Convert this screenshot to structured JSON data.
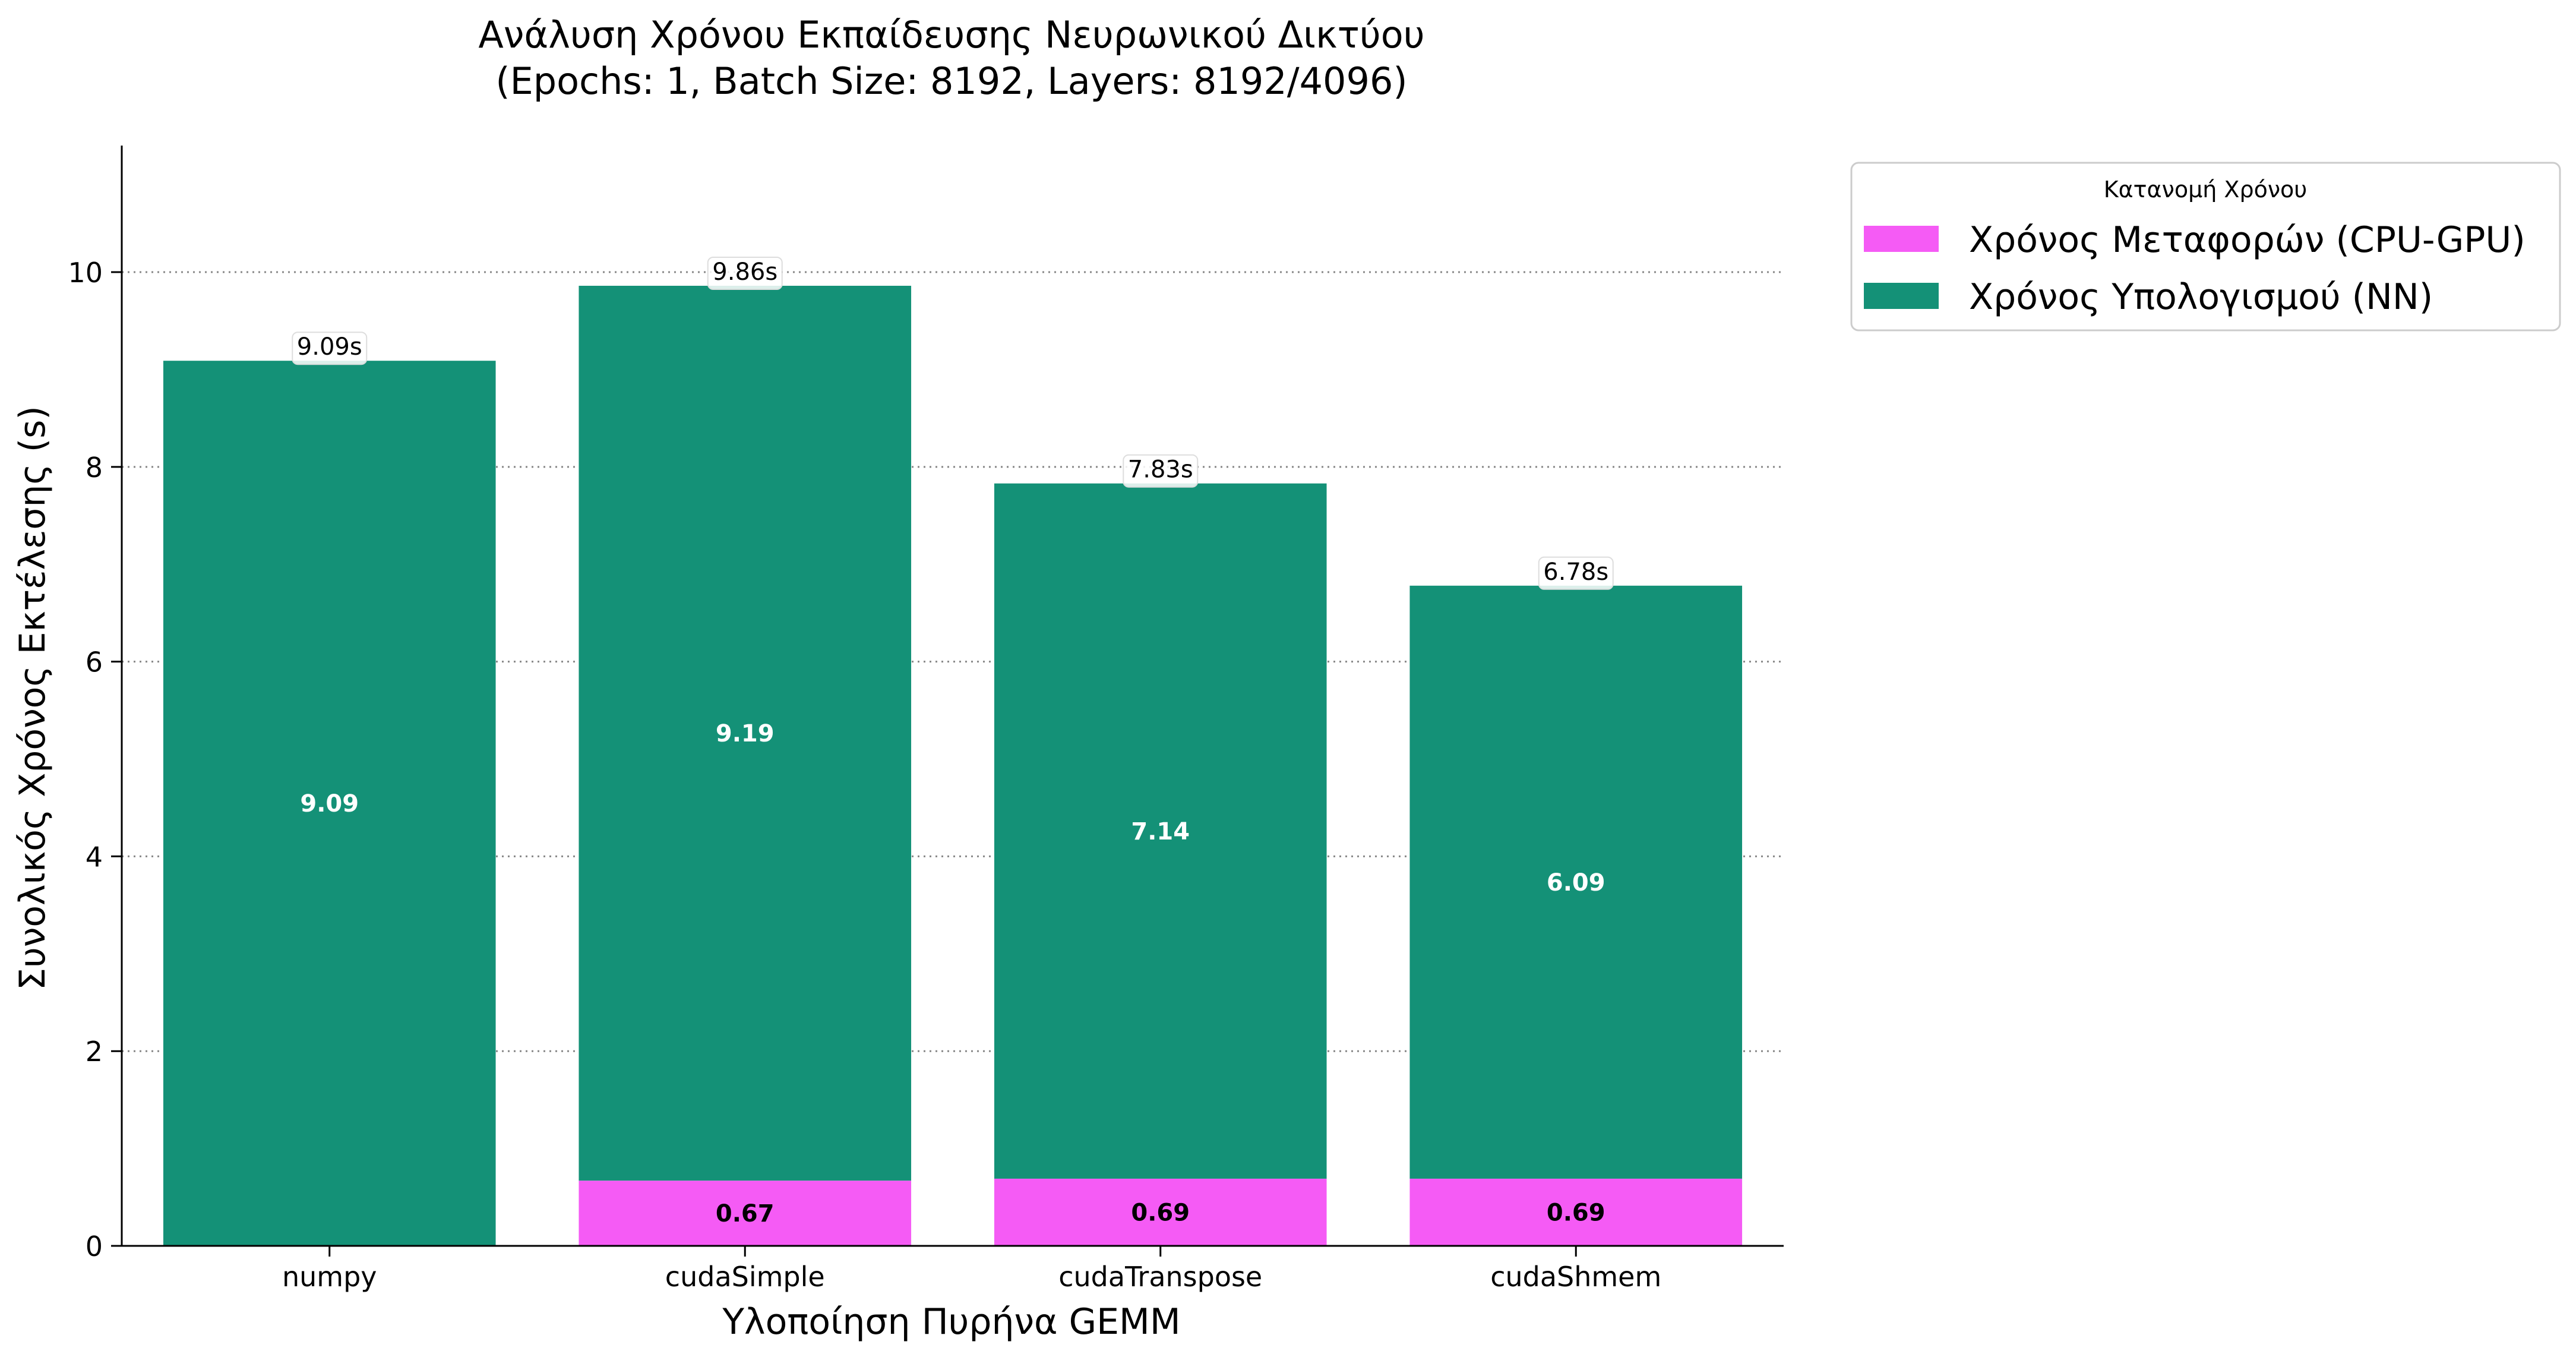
{
  "chart_data": {
    "type": "bar",
    "stacked": true,
    "title_line1": "Ανάλυση Χρόνου Εκπαίδευσης Νευρωνικού Δικτύου",
    "title_line2": "(Epochs: 1, Batch Size: 8192, Layers: 8192/4096)",
    "xlabel": "Υλοποίηση Πυρήνα GEMM",
    "ylabel": "Συνολικός Χρόνος Εκτέλεσης (s)",
    "ylim": [
      0,
      11.3
    ],
    "yticks": [
      0,
      2,
      4,
      6,
      8,
      10
    ],
    "grid": "y-dotted",
    "categories": [
      "numpy",
      "cudaSimple",
      "cudaTranspose",
      "cudaShmem"
    ],
    "series": [
      {
        "name": "Χρόνος Μεταφορών (CPU-GPU)",
        "color": "#f55bf5",
        "values": [
          0,
          0.67,
          0.69,
          0.69
        ],
        "labels": [
          "",
          "0.67",
          "0.69",
          "0.69"
        ]
      },
      {
        "name": "Χρόνος Υπολογισμού (NN)",
        "color": "#149177",
        "values": [
          9.09,
          9.19,
          7.14,
          6.09
        ],
        "labels": [
          "9.09",
          "9.19",
          "7.14",
          "6.09"
        ]
      }
    ],
    "total_labels": [
      "9.09s",
      "9.86s",
      "7.83s",
      "6.78s"
    ],
    "legend": {
      "title": "Κατανομή Χρόνου",
      "placement": "outside-top-right"
    }
  }
}
